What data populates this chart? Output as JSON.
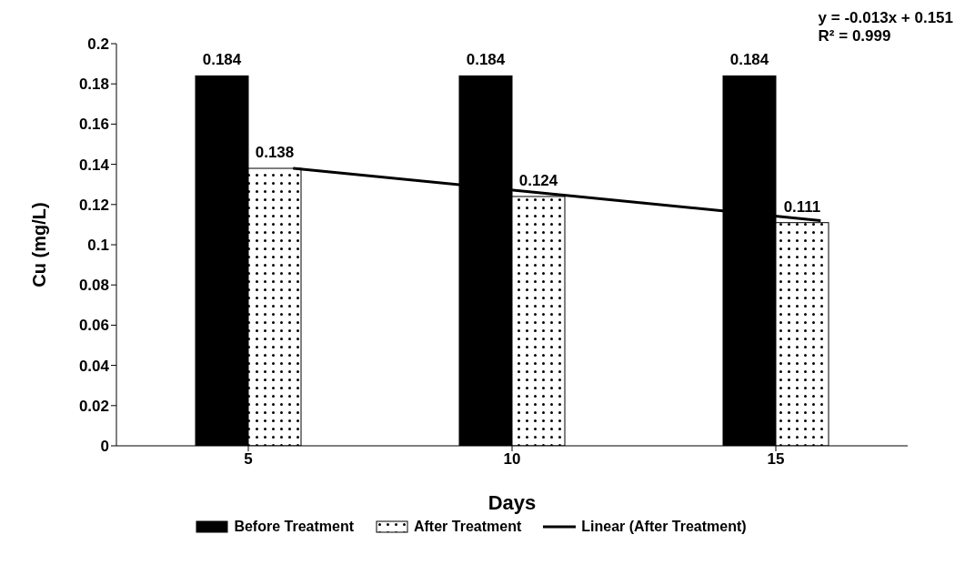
{
  "chart_data": {
    "type": "bar",
    "xlabel": "Days",
    "ylabel": "Cu (mg/L)",
    "categories": [
      "5",
      "10",
      "15"
    ],
    "series": [
      {
        "name": "Before Treatment",
        "color": "#000000",
        "values": [
          0.184,
          0.184,
          0.184
        ],
        "value_labels": [
          "0.184",
          "0.184",
          "0.184"
        ]
      },
      {
        "name": "After Treatment",
        "color": "#ffffff",
        "values": [
          0.138,
          0.124,
          0.111
        ],
        "value_labels": [
          "0.138",
          "0.124",
          "0.111"
        ]
      },
      {
        "name": "Linear (After Treatment)",
        "type": "line",
        "color": "#000000",
        "x": [
          "5",
          "10",
          "15"
        ],
        "values": [
          0.138,
          0.125,
          0.112
        ]
      }
    ],
    "ylim": [
      0,
      0.2
    ],
    "yticks": [
      0,
      0.02,
      0.04,
      0.06,
      0.08,
      0.1,
      0.12,
      0.14,
      0.16,
      0.18,
      0.2
    ],
    "grid": false,
    "legend": "bottom",
    "marker": "none",
    "line_style": "solid",
    "annotations": [
      "y = -0.013x + 0.151",
      "R² = 0.999"
    ]
  }
}
